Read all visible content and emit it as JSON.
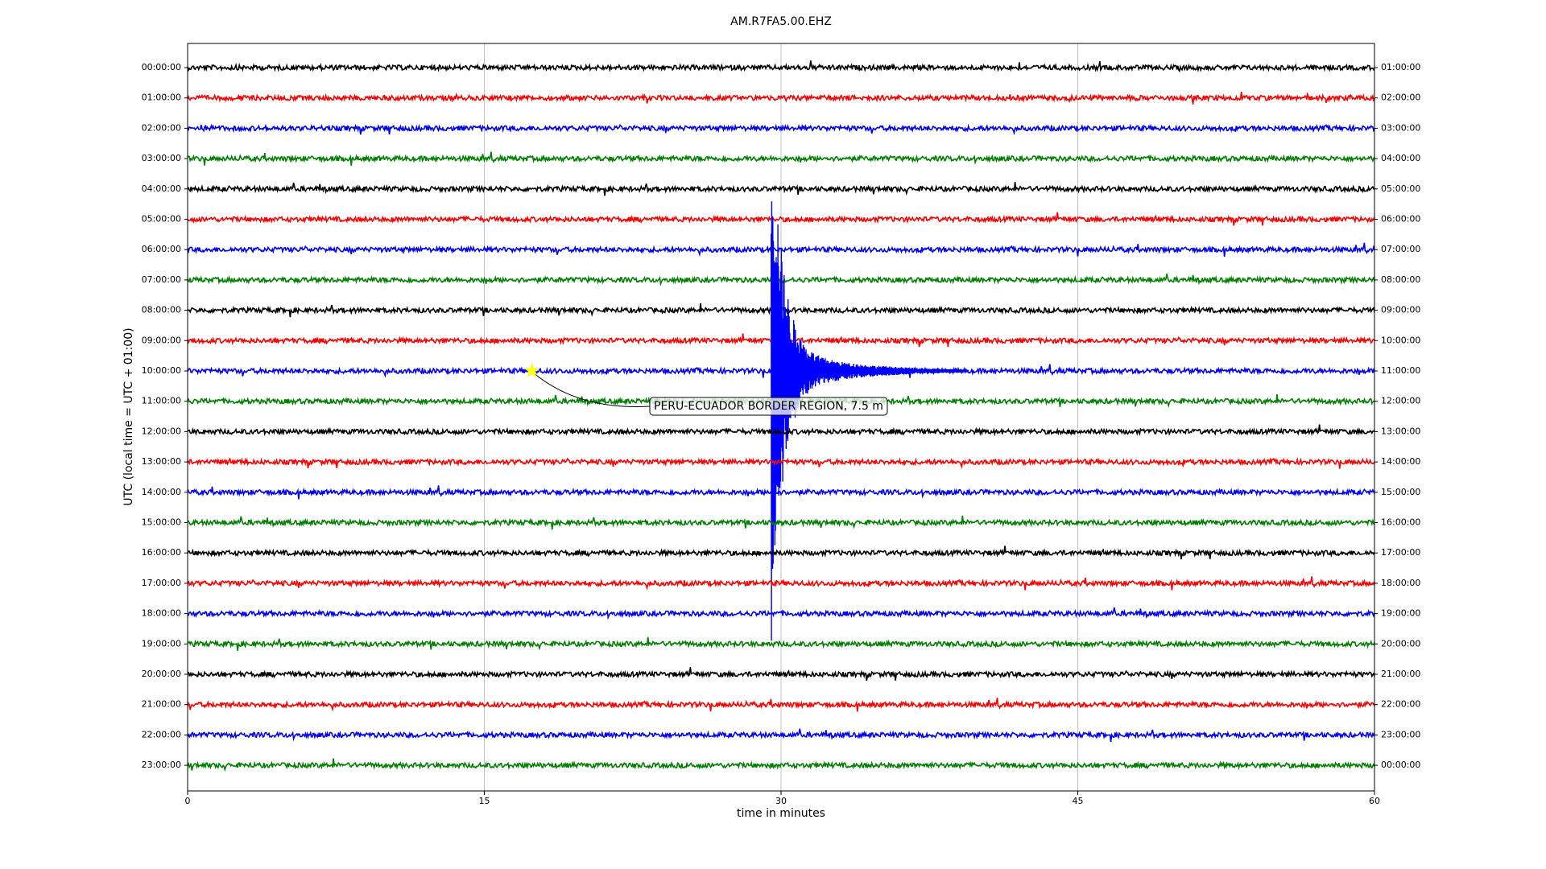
{
  "chart_data": {
    "type": "dayplot",
    "title": "AM.R7FA5.00.EHZ",
    "xlabel": "time in minutes",
    "ylabel": "UTC (local time = UTC + 01:00)",
    "xlim": [
      0,
      60
    ],
    "xticks": [
      0,
      15,
      30,
      45,
      60
    ],
    "grid": true,
    "series": [
      {
        "name": "00:00:00",
        "right_label": "01:00:00",
        "color": "#000000"
      },
      {
        "name": "01:00:00",
        "right_label": "02:00:00",
        "color": "#ff0000"
      },
      {
        "name": "02:00:00",
        "right_label": "03:00:00",
        "color": "#0000ff"
      },
      {
        "name": "03:00:00",
        "right_label": "04:00:00",
        "color": "#008000"
      },
      {
        "name": "04:00:00",
        "right_label": "05:00:00",
        "color": "#000000"
      },
      {
        "name": "05:00:00",
        "right_label": "06:00:00",
        "color": "#ff0000"
      },
      {
        "name": "06:00:00",
        "right_label": "07:00:00",
        "color": "#0000ff"
      },
      {
        "name": "07:00:00",
        "right_label": "08:00:00",
        "color": "#008000"
      },
      {
        "name": "08:00:00",
        "right_label": "09:00:00",
        "color": "#000000"
      },
      {
        "name": "09:00:00",
        "right_label": "10:00:00",
        "color": "#ff0000"
      },
      {
        "name": "10:00:00",
        "right_label": "11:00:00",
        "color": "#0000ff",
        "events": [
          29.5
        ]
      },
      {
        "name": "11:00:00",
        "right_label": "12:00:00",
        "color": "#008000"
      },
      {
        "name": "12:00:00",
        "right_label": "13:00:00",
        "color": "#000000"
      },
      {
        "name": "13:00:00",
        "right_label": "14:00:00",
        "color": "#ff0000"
      },
      {
        "name": "14:00:00",
        "right_label": "15:00:00",
        "color": "#0000ff"
      },
      {
        "name": "15:00:00",
        "right_label": "16:00:00",
        "color": "#008000"
      },
      {
        "name": "16:00:00",
        "right_label": "17:00:00",
        "color": "#000000"
      },
      {
        "name": "17:00:00",
        "right_label": "18:00:00",
        "color": "#ff0000"
      },
      {
        "name": "18:00:00",
        "right_label": "19:00:00",
        "color": "#0000ff"
      },
      {
        "name": "19:00:00",
        "right_label": "20:00:00",
        "color": "#008000"
      },
      {
        "name": "20:00:00",
        "right_label": "21:00:00",
        "color": "#000000"
      },
      {
        "name": "21:00:00",
        "right_label": "22:00:00",
        "color": "#ff0000"
      },
      {
        "name": "22:00:00",
        "right_label": "23:00:00",
        "color": "#0000ff"
      },
      {
        "name": "23:00:00",
        "right_label": "00:00:00",
        "color": "#008000"
      }
    ],
    "annotation": {
      "text": "PERU-ECUADOR BORDER REGION, 7.5 m",
      "x": 17.4,
      "series": 10,
      "marker_color": "#ffff00"
    }
  }
}
